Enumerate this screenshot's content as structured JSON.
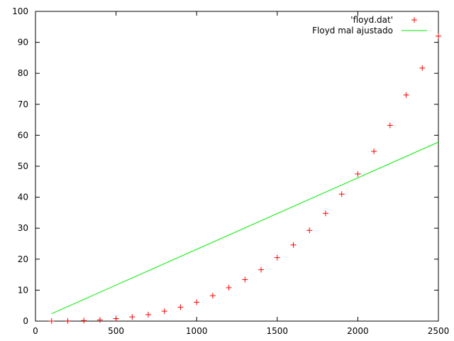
{
  "chart_data": {
    "type": "scatter",
    "title": "",
    "xlabel": "",
    "ylabel": "",
    "xlim": [
      0,
      2500
    ],
    "ylim": [
      0,
      100
    ],
    "x_ticks": [
      "0",
      "500",
      "1000",
      "1500",
      "2000",
      "2500"
    ],
    "y_ticks": [
      "0",
      "10",
      "20",
      "30",
      "40",
      "50",
      "60",
      "70",
      "80",
      "90",
      "100"
    ],
    "grid": false,
    "legend_position": "top-right",
    "series": [
      {
        "name": "'floyd.dat'",
        "kind": "points",
        "marker": "plus",
        "color": "#ff0000",
        "x": [
          100,
          200,
          300,
          400,
          500,
          600,
          700,
          800,
          900,
          1000,
          1100,
          1200,
          1300,
          1400,
          1500,
          1600,
          1700,
          1800,
          1900,
          2000,
          2100,
          2200,
          2300,
          2400,
          2500
        ],
        "y": [
          0.006,
          0.05,
          0.17,
          0.4,
          0.8,
          1.35,
          2.1,
          3.2,
          4.5,
          6.1,
          8.2,
          10.8,
          13.4,
          16.6,
          20.5,
          24.6,
          29.3,
          34.8,
          41.0,
          47.5,
          54.8,
          63.2,
          73.0,
          81.7,
          92.0
        ]
      },
      {
        "name": "Floyd mal ajustado",
        "kind": "line",
        "color": "#00ee00",
        "x": [
          100,
          2500
        ],
        "y": [
          2.4,
          57.8
        ]
      }
    ]
  }
}
